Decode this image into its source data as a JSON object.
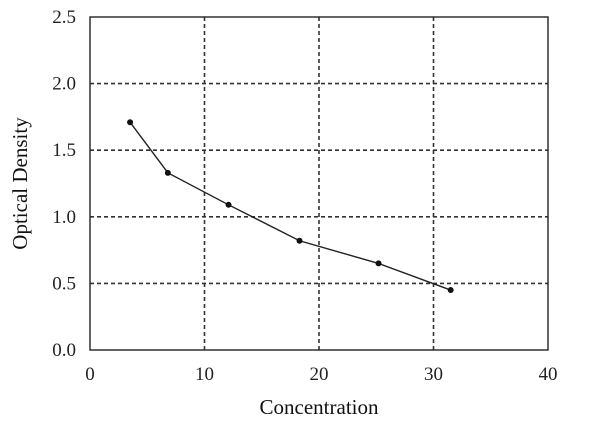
{
  "chart_data": {
    "type": "line",
    "title": "",
    "xlabel": "Concentration",
    "ylabel": "Optical Density",
    "xlim": [
      0,
      40
    ],
    "ylim": [
      0.0,
      2.5
    ],
    "x_ticks": [
      "0",
      "10",
      "20",
      "30",
      "40"
    ],
    "y_ticks": [
      "0.0",
      "0.5",
      "1.0",
      "1.5",
      "2.0",
      "2.5"
    ],
    "grid": true,
    "legend": "none",
    "series": [
      {
        "x": [
          3.5,
          6.8,
          12.1,
          18.3,
          25.2,
          31.5
        ],
        "y": [
          1.71,
          1.33,
          1.09,
          0.82,
          0.65,
          0.45
        ]
      }
    ],
    "colors": {
      "line": "#222222",
      "grid": "#333333"
    }
  }
}
